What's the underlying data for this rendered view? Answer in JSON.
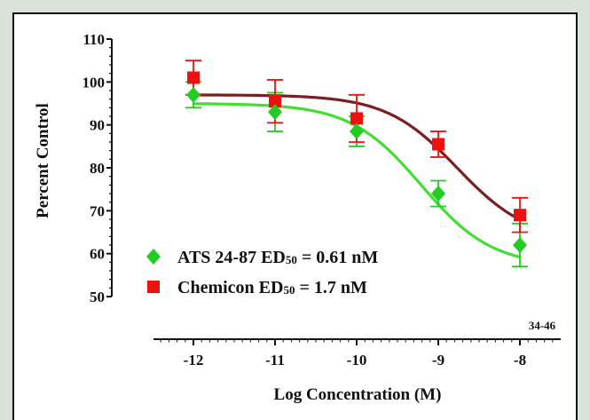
{
  "chart_data": {
    "type": "scatter",
    "title": "",
    "xlabel": "Log Concentration (M)",
    "ylabel": "Percent Control",
    "xlim": [
      -12.6,
      -7.6
    ],
    "ylim": [
      50,
      110
    ],
    "x_ticks": [
      -12,
      -11,
      -10,
      -9,
      -8
    ],
    "x_tick_labels": [
      "-12",
      "-11",
      "-10",
      "-9",
      "-8"
    ],
    "y_ticks": [
      50,
      60,
      70,
      80,
      90,
      100,
      110
    ],
    "y_tick_labels": [
      "50",
      "60",
      "70",
      "80",
      "90",
      "100",
      "110"
    ],
    "grid": false,
    "legend_position": "bottom-left",
    "annotation": "34-46",
    "series": [
      {
        "name": "ATS 24-87 ED",
        "name_subscript": "50",
        "name_suffix": " = 0.61 nM",
        "marker": "diamond",
        "marker_color": "#22cc22",
        "curve_color": "#44dd33",
        "x": [
          -12,
          -11,
          -10,
          -9,
          -8
        ],
        "y": [
          97,
          93,
          88.5,
          74,
          62
        ],
        "error": [
          3,
          4.5,
          3.5,
          3,
          5
        ],
        "fit": {
          "top": 95,
          "bottom": 57,
          "log_ec50": -9.21,
          "hill": 1
        }
      },
      {
        "name": "Chemicon ED",
        "name_subscript": "50",
        "name_suffix": " = 1.7 nM",
        "marker": "square",
        "marker_color": "#ee1111",
        "curve_color": "#7a1f1f",
        "x": [
          -12,
          -11,
          -10,
          -9,
          -8
        ],
        "y": [
          101,
          95.5,
          91.5,
          85.5,
          69
        ],
        "error": [
          4,
          5,
          5.5,
          3,
          4
        ],
        "fit": {
          "top": 97,
          "bottom": 63,
          "log_ec50": -8.77,
          "hill": 1
        }
      }
    ]
  }
}
